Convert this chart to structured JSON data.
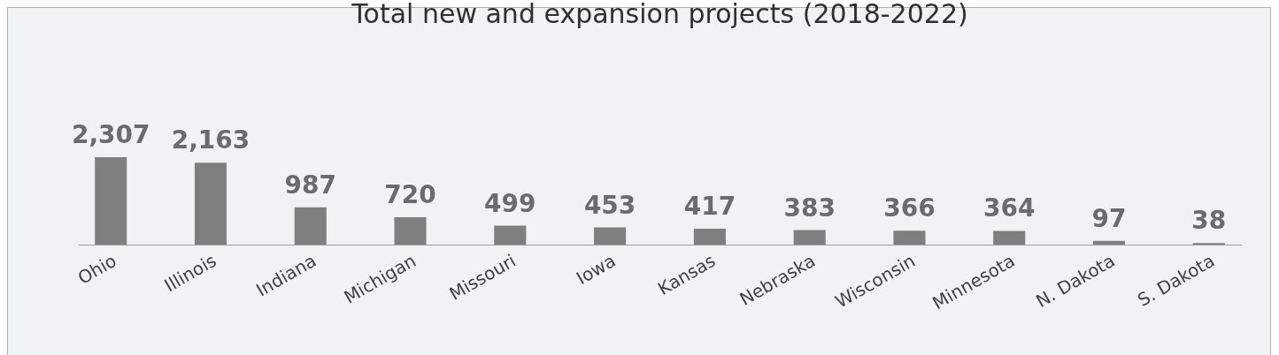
{
  "chart_data": {
    "type": "bar",
    "title": "Total new and expansion projects (2018-2022)",
    "categories": [
      "Ohio",
      "Illinois",
      "Indiana",
      "Michigan",
      "Missouri",
      "Iowa",
      "Kansas",
      "Nebraska",
      "Wisconsin",
      "Minnesota",
      "N. Dakota",
      "S. Dakota"
    ],
    "values": [
      2307,
      2163,
      987,
      720,
      499,
      453,
      417,
      383,
      366,
      364,
      97,
      38
    ],
    "value_labels": [
      "2,307",
      "2,163",
      "987",
      "720",
      "499",
      "453",
      "417",
      "383",
      "366",
      "364",
      "97",
      "38"
    ],
    "color": "#7f7f80",
    "grid": false
  }
}
